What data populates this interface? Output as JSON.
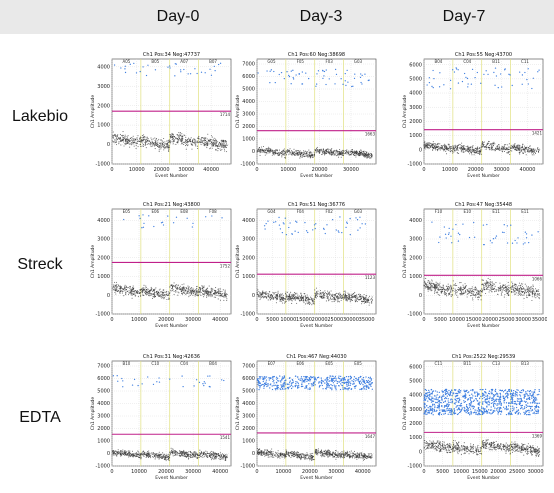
{
  "header": {
    "columns": [
      "Day-0",
      "Day-3",
      "Day-7"
    ],
    "rows": [
      "Lakebio",
      "Streck",
      "EDTA"
    ]
  },
  "colors": {
    "positive": "#3f7fe0",
    "negative": "#3a3a3a",
    "threshold": "#c0208a",
    "divider": "#e0e080",
    "header_band": "#e9e9e9"
  },
  "chart_data": [
    {
      "id": "lakebio-d0",
      "type": "scatter",
      "title": "Ch1 Pos:34 Neg:47737",
      "threshold": 1714,
      "threshold_label": "1714",
      "ylabel": "Ch1 Amplitude",
      "xlabel": "Event Number",
      "xlim": [
        0,
        48000
      ],
      "xticks": [
        0,
        10000,
        20000,
        30000,
        40000
      ],
      "ylim": [
        -1000,
        4400
      ],
      "yticks": [
        -1000,
        0,
        1000,
        2000,
        3000,
        4000
      ],
      "wells": [
        "A05",
        "B05",
        "A07",
        "B07"
      ],
      "pos_band": [
        3500,
        4200
      ],
      "neg_center": 150,
      "neg_spread": 500,
      "pos_count": 34,
      "grid": true
    },
    {
      "id": "lakebio-d3",
      "type": "scatter",
      "title": "Ch1 Pos:60 Neg:38698",
      "threshold": 1663,
      "threshold_label": "1663",
      "ylabel": "Ch1 Amplitude",
      "xlabel": "Event Number",
      "xlim": [
        0,
        38000
      ],
      "xticks": [
        0,
        10000,
        20000,
        30000
      ],
      "ylim": [
        -1000,
        7400
      ],
      "yticks": [
        -1000,
        0,
        1000,
        2000,
        3000,
        4000,
        5000,
        6000,
        7000
      ],
      "wells": [
        "G05",
        "F05",
        "F03",
        "G03"
      ],
      "pos_band": [
        5200,
        6600
      ],
      "neg_center": -100,
      "neg_spread": 450,
      "pos_count": 60,
      "grid": true
    },
    {
      "id": "lakebio-d7",
      "type": "scatter",
      "title": "Ch1 Pos:55 Neg:43700",
      "threshold": 1421,
      "threshold_label": "1421",
      "ylabel": "Ch1 Amplitude",
      "xlabel": "Event Number",
      "xlim": [
        0,
        46000
      ],
      "xticks": [
        0,
        10000,
        20000,
        30000,
        40000
      ],
      "ylim": [
        -1000,
        6400
      ],
      "yticks": [
        -1000,
        0,
        1000,
        2000,
        3000,
        4000,
        5000,
        6000
      ],
      "wells": [
        "B04",
        "C04",
        "B11",
        "C11"
      ],
      "pos_band": [
        4300,
        5800
      ],
      "neg_center": 100,
      "neg_spread": 500,
      "pos_count": 55,
      "grid": true
    },
    {
      "id": "streck-d0",
      "type": "scatter",
      "title": "Ch1 Pos:21 Neg:43800",
      "threshold": 1752,
      "threshold_label": "1752",
      "ylabel": "Ch1 Amplitude",
      "xlabel": "Event Number",
      "xlim": [
        0,
        44000
      ],
      "xticks": [
        0,
        10000,
        20000,
        30000,
        40000
      ],
      "ylim": [
        -1000,
        4600
      ],
      "yticks": [
        -1000,
        0,
        1000,
        2000,
        3000,
        4000
      ],
      "wells": [
        "E05",
        "E06",
        "E08",
        "F08"
      ],
      "pos_band": [
        3600,
        4300
      ],
      "neg_center": 200,
      "neg_spread": 450,
      "pos_count": 21,
      "grid": true
    },
    {
      "id": "streck-d3",
      "type": "scatter",
      "title": "Ch1 Pos:51 Neg:36776",
      "threshold": 1123,
      "threshold_label": "1123",
      "ylabel": "Ch1 Amplitude",
      "xlabel": "Event Number",
      "xlim": [
        0,
        38000
      ],
      "xticks": [
        0,
        5000,
        10000,
        15000,
        20000,
        25000,
        30000,
        35000
      ],
      "ylim": [
        -1000,
        4600
      ],
      "yticks": [
        -1000,
        0,
        1000,
        2000,
        3000,
        4000
      ],
      "wells": [
        "G04",
        "F04",
        "F02",
        "G03"
      ],
      "pos_band": [
        3200,
        4200
      ],
      "neg_center": -100,
      "neg_spread": 400,
      "pos_count": 51,
      "grid": true
    },
    {
      "id": "streck-d7",
      "type": "scatter",
      "title": "Ch1 Pos:47 Neg:35448",
      "threshold": 1066,
      "threshold_label": "1066",
      "ylabel": "Ch1 Amplitude",
      "xlabel": "Event Number",
      "xlim": [
        0,
        36000
      ],
      "xticks": [
        0,
        5000,
        10000,
        15000,
        20000,
        25000,
        30000,
        35000
      ],
      "ylim": [
        -1000,
        4600
      ],
      "yticks": [
        -1000,
        0,
        1000,
        2000,
        3000,
        4000
      ],
      "wells": [
        "F10",
        "E10",
        "E11",
        "E11"
      ],
      "pos_band": [
        2700,
        3900
      ],
      "neg_center": 300,
      "neg_spread": 550,
      "pos_count": 47,
      "grid": true
    },
    {
      "id": "edta-d0",
      "type": "scatter",
      "title": "Ch1 Pos:31 Neg:42636",
      "threshold": 1541,
      "threshold_label": "1541",
      "ylabel": "Ch1 Amplitude",
      "xlabel": "Event Number",
      "xlim": [
        0,
        44000
      ],
      "xticks": [
        0,
        10000,
        20000,
        30000,
        40000
      ],
      "ylim": [
        -1000,
        7400
      ],
      "yticks": [
        -1000,
        0,
        1000,
        2000,
        3000,
        4000,
        5000,
        6000,
        7000
      ],
      "wells": [
        "B10",
        "C10",
        "C04",
        "B04"
      ],
      "pos_band": [
        5300,
        6300
      ],
      "neg_center": -100,
      "neg_spread": 450,
      "pos_count": 31,
      "grid": true
    },
    {
      "id": "edta-d3",
      "type": "scatter",
      "title": "Ch1 Pos:467 Neg:44030",
      "threshold": 1647,
      "threshold_label": "1647",
      "ylabel": "Ch1 Amplitude",
      "xlabel": "Event Number",
      "xlim": [
        0,
        45000
      ],
      "xticks": [
        0,
        10000,
        20000,
        30000,
        40000
      ],
      "ylim": [
        -1000,
        7400
      ],
      "yticks": [
        -1000,
        0,
        1000,
        2000,
        3000,
        4000,
        5000,
        6000,
        7000
      ],
      "wells": [
        "E07",
        "E06",
        "E05",
        "E05"
      ],
      "pos_band": [
        5100,
        6200
      ],
      "neg_center": -100,
      "neg_spread": 450,
      "pos_count": 467,
      "grid": true
    },
    {
      "id": "edta-d7",
      "type": "scatter",
      "title": "Ch1 Pos:2522 Neg:29539",
      "threshold": 1369,
      "threshold_label": "1369",
      "ylabel": "Ch1 Amplitude",
      "xlabel": "Event Number",
      "xlim": [
        0,
        32000
      ],
      "xticks": [
        0,
        5000,
        10000,
        15000,
        20000,
        25000,
        30000
      ],
      "ylim": [
        -1000,
        6400
      ],
      "yticks": [
        -1000,
        0,
        1000,
        2000,
        3000,
        4000,
        5000,
        6000
      ],
      "wells": [
        "C11",
        "B11",
        "C13",
        "B13"
      ],
      "pos_band": [
        2600,
        4400
      ],
      "neg_center": 300,
      "neg_spread": 600,
      "pos_count": 2522,
      "grid": true
    }
  ]
}
